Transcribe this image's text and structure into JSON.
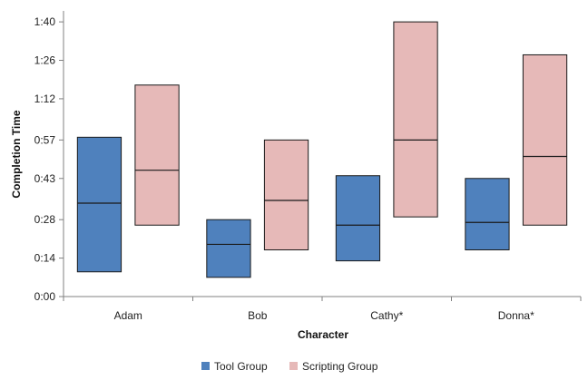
{
  "chart_data": {
    "type": "bar",
    "subtype": "floating-box",
    "title": "",
    "xlabel": "Character",
    "ylabel": "Completion Time",
    "categories": [
      "Adam",
      "Bob",
      "Cathy*",
      "Donna*"
    ],
    "y_unit": "minutes:seconds",
    "ylim": [
      0,
      104
    ],
    "yticks": [
      0,
      14,
      28,
      43,
      57,
      72,
      86,
      100
    ],
    "ytick_labels": [
      "0:00",
      "0:14",
      "0:28",
      "0:43",
      "0:57",
      "1:12",
      "1:26",
      "1:40"
    ],
    "grid": false,
    "legend_position": "bottom-center",
    "series": [
      {
        "name": "Tool Group",
        "color": "#4F81BD",
        "low": [
          9,
          7,
          13,
          17
        ],
        "median": [
          34,
          19,
          26,
          27
        ],
        "high": [
          58,
          28,
          44,
          43
        ]
      },
      {
        "name": "Scripting Group",
        "color": "#E6B9B8",
        "low": [
          26,
          17,
          29,
          26
        ],
        "median": [
          46,
          35,
          57,
          51
        ],
        "high": [
          77,
          57,
          100,
          88
        ]
      }
    ]
  }
}
